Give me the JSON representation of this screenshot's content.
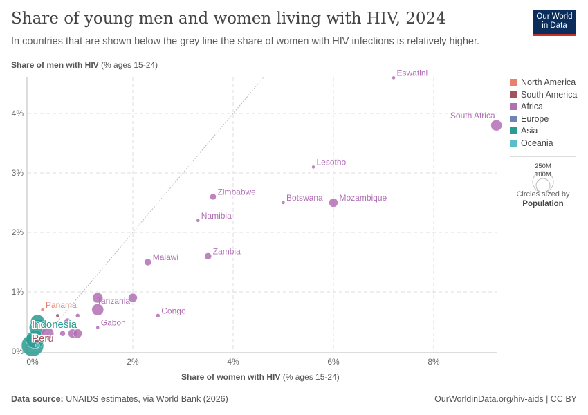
{
  "title": "Share of young men and women living with HIV, 2024",
  "subtitle": "In countries that are shown below the grey line the share of women with HIV infections is relatively higher.",
  "logo": [
    "Our World",
    "in Data"
  ],
  "source": {
    "label": "Data source:",
    "text": "UNAIDS estimates, via World Bank (2026)"
  },
  "license": "OurWorldinData.org/hiv-aids | CC BY",
  "size_legend": {
    "big": "250M",
    "small": "100M",
    "caption": "Circles sized by",
    "variable": "Population"
  },
  "chart_data": {
    "type": "scatter",
    "xlabel": "Share of women with HIV",
    "xlabel_suffix": "(% ages 15-24)",
    "ylabel": "Share of men with HIV",
    "ylabel_suffix": "(% ages 15-24)",
    "xlim": [
      0,
      9.25
    ],
    "ylim": [
      0,
      4.6
    ],
    "xticks": [
      "0%",
      "2%",
      "4%",
      "6%",
      "8%"
    ],
    "xtick_values": [
      0,
      2,
      4,
      6,
      8
    ],
    "yticks": [
      "0%",
      "1%",
      "2%",
      "3%",
      "4%"
    ],
    "ytick_values": [
      0,
      1,
      2,
      3,
      4
    ],
    "grid": true,
    "reference_line": "y = x",
    "legend_position": "right",
    "regions": [
      {
        "name": "North America",
        "color": "#e6826e"
      },
      {
        "name": "South America",
        "color": "#a2525e"
      },
      {
        "name": "Africa",
        "color": "#b16fb4"
      },
      {
        "name": "Europe",
        "color": "#6d84b4"
      },
      {
        "name": "Asia",
        "color": "#2a9b90"
      },
      {
        "name": "Oceania",
        "color": "#5bbdca"
      }
    ],
    "points": [
      {
        "label": "Eswatini",
        "x": 7.2,
        "y": 4.6,
        "region": "Africa",
        "r": 2.5
      },
      {
        "label": "South Africa",
        "x": 9.25,
        "y": 3.8,
        "region": "Africa",
        "r": 8
      },
      {
        "label": "Lesotho",
        "x": 5.6,
        "y": 3.1,
        "region": "Africa",
        "r": 2.5
      },
      {
        "label": "Zimbabwe",
        "x": 3.6,
        "y": 2.6,
        "region": "Africa",
        "r": 4.5
      },
      {
        "label": "Botswana",
        "x": 5.0,
        "y": 2.5,
        "region": "Africa",
        "r": 2.5
      },
      {
        "label": "Mozambique",
        "x": 6.0,
        "y": 2.5,
        "region": "Africa",
        "r": 6.5
      },
      {
        "label": "Namibia",
        "x": 3.3,
        "y": 2.2,
        "region": "Africa",
        "r": 2.5
      },
      {
        "label": "Zambia",
        "x": 3.5,
        "y": 1.6,
        "region": "Africa",
        "r": 5
      },
      {
        "label": "Malawi",
        "x": 2.3,
        "y": 1.5,
        "region": "Africa",
        "r": 5
      },
      {
        "label": "Tanzania",
        "x": 1.3,
        "y": 0.9,
        "region": "Africa",
        "r": 7.5
      },
      {
        "label": "",
        "x": 2.0,
        "y": 0.9,
        "region": "Africa",
        "r": 6.5
      },
      {
        "label": "",
        "x": 1.3,
        "y": 0.7,
        "region": "Africa",
        "r": 8.5
      },
      {
        "label": "Congo",
        "x": 2.5,
        "y": 0.6,
        "region": "Africa",
        "r": 3
      },
      {
        "label": "Gabon",
        "x": 1.3,
        "y": 0.4,
        "region": "Africa",
        "r": 2.5
      },
      {
        "label": "",
        "x": 0.9,
        "y": 0.6,
        "region": "Africa",
        "r": 3
      },
      {
        "label": "",
        "x": 0.8,
        "y": 0.3,
        "region": "Africa",
        "r": 6.5
      },
      {
        "label": "",
        "x": 0.9,
        "y": 0.3,
        "region": "Africa",
        "r": 6.5
      },
      {
        "label": "",
        "x": 0.6,
        "y": 0.3,
        "region": "Africa",
        "r": 4
      },
      {
        "label": "",
        "x": 0.7,
        "y": 0.5,
        "region": "Africa",
        "r": 5
      },
      {
        "label": "",
        "x": 0.5,
        "y": 0.6,
        "region": "South America",
        "r": 2.5
      },
      {
        "label": "",
        "x": 0.3,
        "y": 0.3,
        "region": "Africa",
        "r": 9
      },
      {
        "label": "Panama",
        "x": 0.2,
        "y": 0.7,
        "region": "North America",
        "r": 2.5
      },
      {
        "label": "",
        "x": 0.1,
        "y": 0.4,
        "region": "Asia",
        "r": 12
      },
      {
        "label": "Indonesia",
        "x": 0.1,
        "y": 0.5,
        "region": "Asia",
        "r": 10
      },
      {
        "label": "Peru",
        "x": 0.1,
        "y": 0.2,
        "region": "South America",
        "r": 5
      },
      {
        "label": "",
        "x": 0.0,
        "y": 0.1,
        "region": "Asia",
        "r": 16
      },
      {
        "label": "",
        "x": 0.05,
        "y": 0.2,
        "region": "Asia",
        "r": 13
      },
      {
        "label": "",
        "x": 0.1,
        "y": 0.1,
        "region": "Oceania",
        "r": 3
      }
    ]
  }
}
